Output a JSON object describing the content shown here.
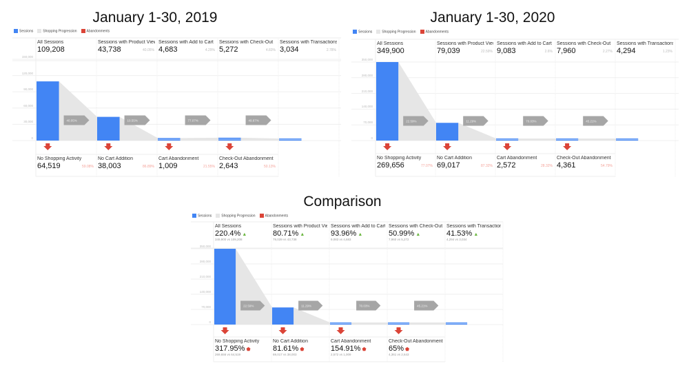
{
  "colors": {
    "sessions": "#4285f4",
    "progression": "#e6e6e6",
    "abandonment": "#db4437",
    "progress_arrow": "#a6a6a6",
    "up_green": "#6ab53f",
    "down_red": "#db4437",
    "pct_gray": "#bbbbbb",
    "pct_red": "#f4a39a"
  },
  "legend": [
    {
      "label": "Sessions",
      "color": "#4285f4"
    },
    {
      "label": "Shopping Progression",
      "color": "#e6e6e6"
    },
    {
      "label": "Abandonments",
      "color": "#db4437"
    }
  ],
  "panels": [
    {
      "title": "January 1-30, 2019",
      "type": "period",
      "chart_data": {
        "type": "bar",
        "categories": [
          "All Sessions",
          "Sessions with Product Views",
          "Sessions with Add to Cart",
          "Sessions with Check-Out",
          "Sessions with Transactions"
        ],
        "values": [
          109208,
          43738,
          4683,
          5272,
          3034
        ],
        "ylim": [
          0,
          150000
        ],
        "yticks": [
          "150,000",
          "120,000",
          "90,000",
          "60,000",
          "30,000",
          "0"
        ],
        "grid": true
      },
      "stages": [
        {
          "label": "All Sessions",
          "value": "109,208",
          "pct": ""
        },
        {
          "label": "Sessions with Product Views",
          "value": "43,738",
          "pct": "40.05%"
        },
        {
          "label": "Sessions with Add to Cart",
          "value": "4,683",
          "pct": "4.29%"
        },
        {
          "label": "Sessions with Check-Out",
          "value": "5,272",
          "pct": "4.83%"
        },
        {
          "label": "Sessions with Transactions",
          "value": "3,034",
          "pct": "2.78%"
        }
      ],
      "progression": [
        "40.05%",
        "10.55%",
        "77.07%",
        "49.87%"
      ],
      "abandonments": [
        {
          "label": "No Shopping Activity",
          "value": "64,519",
          "pct": "59.08%"
        },
        {
          "label": "No Cart Addition",
          "value": "38,003",
          "pct": "86.89%"
        },
        {
          "label": "Cart Abandonment",
          "value": "1,009",
          "pct": "21.55%"
        },
        {
          "label": "Check-Out Abandonment",
          "value": "2,643",
          "pct": "50.13%"
        }
      ]
    },
    {
      "title": "January 1-30, 2020",
      "type": "period",
      "chart_data": {
        "type": "bar",
        "categories": [
          "All Sessions",
          "Sessions with Product Views",
          "Sessions with Add to Cart",
          "Sessions with Check-Out",
          "Sessions with Transactions"
        ],
        "values": [
          349900,
          79039,
          9083,
          7960,
          4294
        ],
        "ylim": [
          0,
          350000
        ],
        "yticks": [
          "350,000",
          "280,000",
          "210,000",
          "140,000",
          "70,000",
          "0"
        ],
        "grid": true
      },
      "stages": [
        {
          "label": "All Sessions",
          "value": "349,900",
          "pct": ""
        },
        {
          "label": "Sessions with Product Views",
          "value": "79,039",
          "pct": "22.59%"
        },
        {
          "label": "Sessions with Add to Cart",
          "value": "9,083",
          "pct": "2.6%"
        },
        {
          "label": "Sessions with Check-Out",
          "value": "7,960",
          "pct": "2.27%"
        },
        {
          "label": "Sessions with Transactions",
          "value": "4,294",
          "pct": "1.23%"
        }
      ],
      "progression": [
        "22.59%",
        "11.29%",
        "70.03%",
        "45.21%"
      ],
      "abandonments": [
        {
          "label": "No Shopping Activity",
          "value": "269,656",
          "pct": "77.07%"
        },
        {
          "label": "No Cart Addition",
          "value": "69,017",
          "pct": "87.32%"
        },
        {
          "label": "Cart Abandonment",
          "value": "2,572",
          "pct": "28.32%"
        },
        {
          "label": "Check-Out Abandonment",
          "value": "4,361",
          "pct": "54.79%"
        }
      ]
    },
    {
      "title": "Comparison",
      "type": "comparison",
      "chart_data": {
        "type": "bar",
        "categories": [
          "All Sessions",
          "Sessions with Product Views",
          "Sessions with Add to Cart",
          "Sessions with Check-Out",
          "Sessions with Transactions"
        ],
        "values": [
          349900,
          79039,
          9083,
          7960,
          4294
        ],
        "ylim": [
          0,
          350000
        ],
        "yticks": [
          "350,000",
          "280,000",
          "210,000",
          "140,000",
          "70,000",
          "0"
        ],
        "grid": true
      },
      "stages": [
        {
          "label": "All Sessions",
          "value": "220.4%",
          "sub": "349,900 vs 109,208",
          "trend": "up"
        },
        {
          "label": "Sessions with Product Views",
          "value": "80.71%",
          "sub": "79,039 vs 43,738",
          "trend": "up"
        },
        {
          "label": "Sessions with Add to Cart",
          "value": "93.96%",
          "sub": "9,083 vs 4,683",
          "trend": "up"
        },
        {
          "label": "Sessions with Check-Out",
          "value": "50.99%",
          "sub": "7,960 vs 5,272",
          "trend": "up"
        },
        {
          "label": "Sessions with Transactions",
          "value": "41.53%",
          "sub": "4,294 vs 3,034",
          "trend": "up"
        }
      ],
      "progression": [
        "22.59%",
        "11.29%",
        "70.03%",
        "45.21%"
      ],
      "abandonments": [
        {
          "label": "No Shopping Activity",
          "value": "317.95%",
          "sub": "269,656 vs 64,519",
          "trend": "up-bad"
        },
        {
          "label": "No Cart Addition",
          "value": "81.61%",
          "sub": "69,017 vs 38,003",
          "trend": "up-bad"
        },
        {
          "label": "Cart Abandonment",
          "value": "154.91%",
          "sub": "2,572 vs 1,009",
          "trend": "up-bad"
        },
        {
          "label": "Check-Out Abandonment",
          "value": "65%",
          "sub": "4,361 vs 2,643",
          "trend": "up-bad"
        }
      ]
    }
  ]
}
